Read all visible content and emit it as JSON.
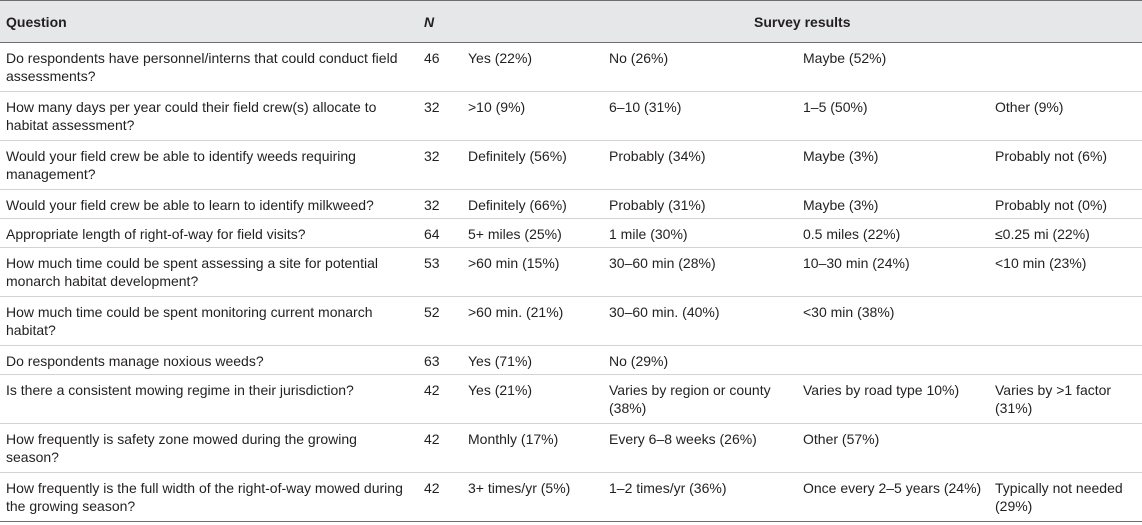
{
  "header": {
    "question": "Question",
    "n": "N",
    "results": "Survey results"
  },
  "rows": [
    {
      "question": "Do respondents have personnel/interns that could conduct field assessments?",
      "n": "46",
      "a": "Yes (22%)",
      "b": "No (26%)",
      "c": "Maybe (52%)",
      "d": ""
    },
    {
      "question": "How many days per year could their field crew(s) allocate to habitat assessment?",
      "n": "32",
      "a": ">10 (9%)",
      "b": "6–10 (31%)",
      "c": "1–5 (50%)",
      "d": "Other (9%)"
    },
    {
      "question": "Would your field crew be able to identify weeds requiring management?",
      "n": "32",
      "a": "Definitely (56%)",
      "b": "Probably (34%)",
      "c": "Maybe (3%)",
      "d": "Probably not (6%)"
    },
    {
      "question": "Would your field crew be able to learn to identify milkweed?",
      "n": "32",
      "a": "Definitely (66%)",
      "b": "Probably (31%)",
      "c": "Maybe (3%)",
      "d": "Probably not (0%)"
    },
    {
      "question": "Appropriate length of right-of-way for field visits?",
      "n": "64",
      "a": "5+ miles (25%)",
      "b": "1 mile (30%)",
      "c": "0.5 miles (22%)",
      "d": "≤0.25 mi (22%)"
    },
    {
      "question": "How much time could be spent assessing a site for potential monarch habitat development?",
      "n": "53",
      "a": ">60 min (15%)",
      "b": "30–60 min (28%)",
      "c": "10–30 min (24%)",
      "d": "<10 min (23%)"
    },
    {
      "question": "How much time could be spent monitoring current monarch habitat?",
      "n": "52",
      "a": ">60 min. (21%)",
      "b": "30–60 min. (40%)",
      "c": "<30 min (38%)",
      "d": ""
    },
    {
      "question": "Do respondents manage noxious weeds?",
      "n": "63",
      "a": "Yes (71%)",
      "b": "No (29%)",
      "c": "",
      "d": ""
    },
    {
      "question": "Is there a consistent mowing regime in their jurisdiction?",
      "n": "42",
      "a": "Yes (21%)",
      "b": "Varies by region or county (38%)",
      "c": "Varies by road type 10%)",
      "d": "Varies by >1 factor (31%)"
    },
    {
      "question": "How frequently is safety zone mowed during the growing season?",
      "n": "42",
      "a": "Monthly (17%)",
      "b": "Every 6–8 weeks (26%)",
      "c": "Other (57%)",
      "d": ""
    },
    {
      "question": "How frequently is the full width of the right-of-way mowed during the growing season?",
      "n": "42",
      "a": "3+ times/yr (5%)",
      "b": "1–2 times/yr (36%)",
      "c": "Once every 2–5 years (24%)",
      "d": "Typically not needed (29%)"
    }
  ]
}
